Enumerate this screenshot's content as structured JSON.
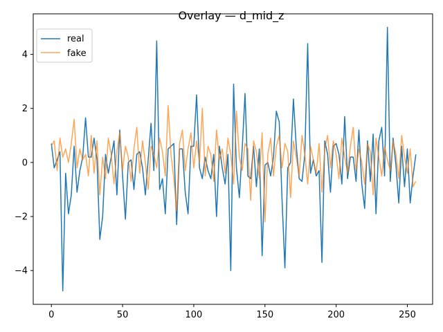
{
  "chart_data": {
    "type": "line",
    "title": "Overlay — d_mid_z",
    "xlabel": "",
    "ylabel": "",
    "xlim": [
      -12.75,
      267.75
    ],
    "ylim": [
      -5.25,
      5.5
    ],
    "xticks": [
      0,
      50,
      100,
      150,
      200,
      250
    ],
    "yticks": [
      -4,
      -2,
      0,
      2,
      4
    ],
    "grid": false,
    "legend": "top-left",
    "series": [
      {
        "name": "real",
        "color": "#1f77b4",
        "x": [
          0,
          2,
          4,
          6,
          8,
          10,
          12,
          14,
          16,
          18,
          20,
          22,
          24,
          26,
          28,
          30,
          32,
          34,
          36,
          38,
          40,
          42,
          44,
          46,
          48,
          50,
          52,
          54,
          56,
          58,
          60,
          62,
          64,
          66,
          68,
          70,
          72,
          74,
          76,
          78,
          80,
          82,
          84,
          86,
          88,
          90,
          92,
          94,
          96,
          98,
          100,
          102,
          104,
          106,
          108,
          110,
          112,
          114,
          116,
          118,
          120,
          122,
          124,
          126,
          128,
          130,
          132,
          134,
          136,
          138,
          140,
          142,
          144,
          146,
          148,
          150,
          152,
          154,
          156,
          158,
          160,
          162,
          164,
          166,
          168,
          170,
          172,
          174,
          176,
          178,
          180,
          182,
          184,
          186,
          188,
          190,
          192,
          194,
          196,
          198,
          200,
          202,
          204,
          206,
          208,
          210,
          212,
          214,
          216,
          218,
          220,
          222,
          224,
          226,
          228,
          230,
          232,
          234,
          236,
          238,
          240,
          242,
          244,
          246,
          248,
          250,
          252,
          254,
          256
        ],
        "values": [
          0.7,
          -0.2,
          0.1,
          0.4,
          -4.75,
          -0.4,
          -1.9,
          -1.2,
          0.6,
          -1.1,
          -0.3,
          0.2,
          1.65,
          0.2,
          0.2,
          0.9,
          0.1,
          -2.85,
          -2.0,
          0.3,
          -0.4,
          0.2,
          0.8,
          -1.2,
          1.2,
          -0.5,
          -2.1,
          0.0,
          0.1,
          -1.0,
          0.3,
          0.4,
          -0.2,
          -1.2,
          0.1,
          1.45,
          -0.3,
          4.5,
          -1.0,
          -0.6,
          -1.9,
          0.5,
          0.6,
          0.7,
          -2.3,
          0.5,
          0.5,
          -1.1,
          -1.9,
          0.6,
          0.6,
          2.5,
          -0.2,
          -0.6,
          0.2,
          -0.3,
          -0.6,
          0.3,
          -2.0,
          0.6,
          -0.2,
          -0.8,
          0.3,
          -4.0,
          2.9,
          -0.2,
          -1.3,
          0.5,
          2.55,
          -0.5,
          -0.6,
          0.6,
          -0.9,
          0.5,
          -3.45,
          -0.1,
          0.0,
          -0.5,
          0.2,
          1.9,
          1.5,
          -1.4,
          -3.9,
          -0.2,
          0.0,
          2.35,
          0.6,
          -0.6,
          -0.7,
          0.3,
          4.4,
          -0.4,
          0.1,
          -0.5,
          -0.3,
          -3.7,
          0.8,
          0.3,
          -1.1,
          0.6,
          0.7,
          0.3,
          -0.8,
          1.7,
          -0.6,
          0.2,
          0.2,
          -0.7,
          1.2,
          -0.8,
          -1.7,
          0.8,
          -0.7,
          1.05,
          -1.9,
          0.8,
          1.3,
          -0.5,
          5.0,
          -0.7,
          0.9,
          -0.1,
          -1.5,
          0.6,
          -0.9,
          0.5,
          -1.5,
          -0.5,
          0.3
        ]
      },
      {
        "name": "fake",
        "color": "#ff7f0e",
        "x": [
          0,
          2,
          4,
          6,
          8,
          10,
          12,
          14,
          16,
          18,
          20,
          22,
          24,
          26,
          28,
          30,
          32,
          34,
          36,
          38,
          40,
          42,
          44,
          46,
          48,
          50,
          52,
          54,
          56,
          58,
          60,
          62,
          64,
          66,
          68,
          70,
          72,
          74,
          76,
          78,
          80,
          82,
          84,
          86,
          88,
          90,
          92,
          94,
          96,
          98,
          100,
          102,
          104,
          106,
          108,
          110,
          112,
          114,
          116,
          118,
          120,
          122,
          124,
          126,
          128,
          130,
          132,
          134,
          136,
          138,
          140,
          142,
          144,
          146,
          148,
          150,
          152,
          154,
          156,
          158,
          160,
          162,
          164,
          166,
          168,
          170,
          172,
          174,
          176,
          178,
          180,
          182,
          184,
          186,
          188,
          190,
          192,
          194,
          196,
          198,
          200,
          202,
          204,
          206,
          208,
          210,
          212,
          214,
          216,
          218,
          220,
          222,
          224,
          226,
          228,
          230,
          232,
          234,
          236,
          238,
          240,
          242,
          244,
          246,
          248,
          250,
          252,
          254,
          256
        ],
        "values": [
          0.6,
          0.8,
          -0.3,
          0.9,
          0.2,
          0.5,
          0.0,
          0.7,
          1.6,
          -0.2,
          0.5,
          0.1,
          0.3,
          -0.5,
          1.0,
          -0.4,
          0.8,
          -1.2,
          0.2,
          -0.6,
          0.9,
          0.3,
          -0.8,
          0.4,
          1.1,
          -0.3,
          0.6,
          0.2,
          -0.7,
          0.5,
          1.3,
          -0.4,
          0.8,
          0.0,
          -1.0,
          0.6,
          0.3,
          -0.2,
          0.9,
          0.4,
          -0.5,
          2.1,
          0.3,
          -0.6,
          -1.8,
          0.7,
          1.2,
          -0.3,
          0.5,
          1.1,
          -0.2,
          0.8,
          0.0,
          2.0,
          -0.5,
          0.6,
          0.3,
          -0.7,
          1.2,
          0.1,
          0.5,
          -0.4,
          0.9,
          0.3,
          -0.8,
          1.9,
          0.2,
          -0.3,
          0.7,
          0.5,
          -1.4,
          0.8,
          0.4,
          -0.6,
          1.1,
          -2.2,
          0.3,
          0.9,
          -0.5,
          0.6,
          1.0,
          -0.2,
          0.7,
          0.4,
          -1.3,
          0.8,
          0.2,
          -0.5,
          1.0,
          0.3,
          -0.8,
          0.6,
          0.1,
          -0.4,
          0.7,
          -1.1,
          0.5,
          1.0,
          -0.2,
          0.8,
          0.3,
          -0.6,
          0.9,
          0.2,
          -0.4,
          0.6,
          1.3,
          -0.3,
          0.5,
          0.0,
          -0.8,
          0.7,
          0.4,
          -1.2,
          0.9,
          0.2,
          -0.5,
          0.6,
          0.1,
          -0.3,
          0.8,
          0.3,
          -0.6,
          1.0,
          0.2,
          -0.4,
          0.5,
          -0.9,
          -0.7
        ]
      }
    ]
  }
}
